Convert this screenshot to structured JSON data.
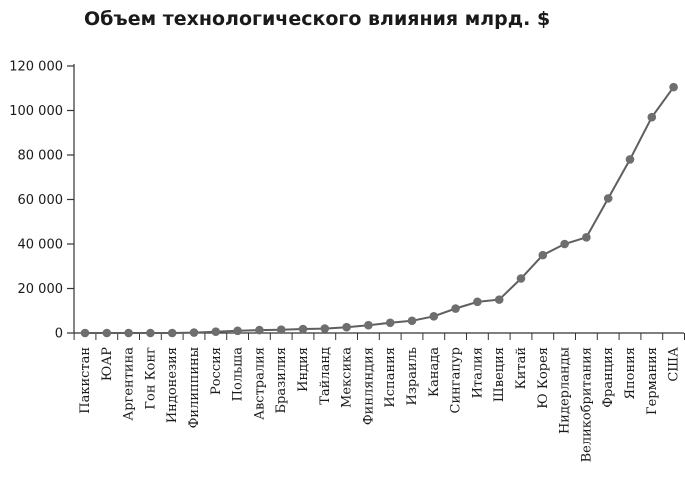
{
  "chart_data": {
    "type": "line",
    "title": "Объем технологического влияния млрд. $",
    "xlabel": "",
    "ylabel": "",
    "ylim": [
      0,
      120000
    ],
    "yticks": [
      0,
      20000,
      40000,
      60000,
      80000,
      100000,
      120000
    ],
    "ytick_labels": [
      "0",
      "20 000",
      "40 000",
      "60 000",
      "80 000",
      "100 000",
      "120 000"
    ],
    "grid": false,
    "legend": "none",
    "line_color": "#5f5f5f",
    "marker_color": "#6e6e6e",
    "categories": [
      "Пакистан",
      "ЮАР",
      "Аргентина",
      "Гон Конг",
      "Индонезия",
      "Филиппины",
      "Россия",
      "Польша",
      "Австралия",
      "Бразилия",
      "Индия",
      "Тайланд",
      "Мексика",
      "Финляндия",
      "Испания",
      "Израиль",
      "Канада",
      "Сингапур",
      "Италия",
      "Швеция",
      "Китай",
      "Ю Корея",
      "Нидерланды",
      "Великобритания",
      "Франция",
      "Япония",
      "Германия",
      "США"
    ],
    "series": [
      {
        "values": [
          0,
          0,
          0,
          0,
          0,
          200,
          600,
          1000,
          1300,
          1500,
          1800,
          2000,
          2600,
          3500,
          4600,
          5500,
          7500,
          11000,
          14000,
          15000,
          24500,
          35000,
          40000,
          43000,
          60500,
          78000,
          97000,
          110500
        ]
      }
    ]
  }
}
